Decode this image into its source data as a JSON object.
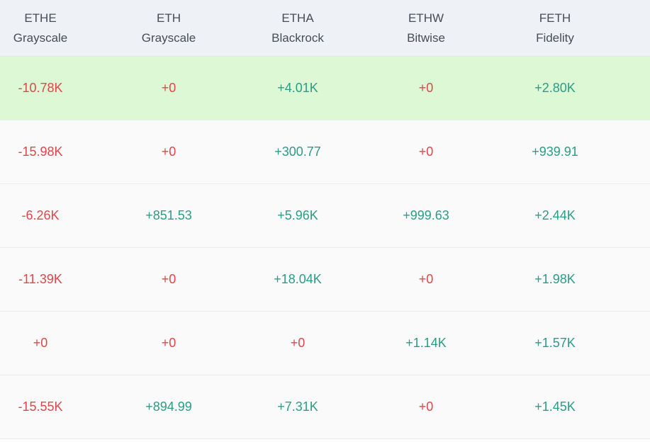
{
  "columns": [
    {
      "ticker": "ETHE",
      "issuer": "Grayscale"
    },
    {
      "ticker": "ETH",
      "issuer": "Grayscale"
    },
    {
      "ticker": "ETHA",
      "issuer": "Blackrock"
    },
    {
      "ticker": "ETHW",
      "issuer": "Bitwise"
    },
    {
      "ticker": "FETH",
      "issuer": "Fidelity"
    }
  ],
  "rows": [
    {
      "highlighted": true,
      "cells": [
        {
          "value": "-10.78K",
          "tone": "negative"
        },
        {
          "value": "+0",
          "tone": "negative"
        },
        {
          "value": "+4.01K",
          "tone": "positive"
        },
        {
          "value": "+0",
          "tone": "negative"
        },
        {
          "value": "+2.80K",
          "tone": "positive"
        }
      ]
    },
    {
      "highlighted": false,
      "cells": [
        {
          "value": "-15.98K",
          "tone": "negative"
        },
        {
          "value": "+0",
          "tone": "negative"
        },
        {
          "value": "+300.77",
          "tone": "positive"
        },
        {
          "value": "+0",
          "tone": "negative"
        },
        {
          "value": "+939.91",
          "tone": "positive"
        }
      ]
    },
    {
      "highlighted": false,
      "cells": [
        {
          "value": "-6.26K",
          "tone": "negative"
        },
        {
          "value": "+851.53",
          "tone": "positive"
        },
        {
          "value": "+5.96K",
          "tone": "positive"
        },
        {
          "value": "+999.63",
          "tone": "positive"
        },
        {
          "value": "+2.44K",
          "tone": "positive"
        }
      ]
    },
    {
      "highlighted": false,
      "cells": [
        {
          "value": "-11.39K",
          "tone": "negative"
        },
        {
          "value": "+0",
          "tone": "negative"
        },
        {
          "value": "+18.04K",
          "tone": "positive"
        },
        {
          "value": "+0",
          "tone": "negative"
        },
        {
          "value": "+1.98K",
          "tone": "positive"
        }
      ]
    },
    {
      "highlighted": false,
      "cells": [
        {
          "value": "+0",
          "tone": "negative"
        },
        {
          "value": "+0",
          "tone": "negative"
        },
        {
          "value": "+0",
          "tone": "negative"
        },
        {
          "value": "+1.14K",
          "tone": "positive"
        },
        {
          "value": "+1.57K",
          "tone": "positive"
        }
      ]
    },
    {
      "highlighted": false,
      "cells": [
        {
          "value": "-15.55K",
          "tone": "negative"
        },
        {
          "value": "+894.99",
          "tone": "positive"
        },
        {
          "value": "+7.31K",
          "tone": "positive"
        },
        {
          "value": "+0",
          "tone": "negative"
        },
        {
          "value": "+1.45K",
          "tone": "positive"
        }
      ]
    }
  ],
  "colors": {
    "negative": "#e0464a",
    "positive": "#2a9d86",
    "highlight_row": "#dcf8d5",
    "header_bg": "#eef1f5"
  }
}
